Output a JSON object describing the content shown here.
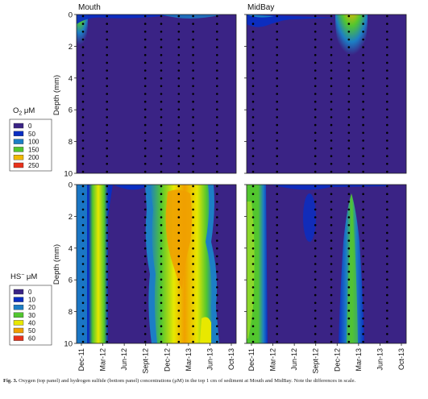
{
  "caption": {
    "label": "Fig. 3.",
    "text": "Oxygen (top panel) and hydrogen sulfide (bottom panel) concentrations (μM) in the top 1 cm of sediment at Mouth and MidBay. Note the differences in scale."
  },
  "colors": {
    "background": "#3a2385",
    "frame": "#222222",
    "dot": "#000000"
  },
  "chart_data": [
    {
      "type": "heatmap",
      "panel": "oxygen-mouth",
      "title": "Mouth",
      "ylabel": "Depth (mm)",
      "ylim": [
        10,
        0
      ],
      "yticks": [
        "0",
        "2",
        "4",
        "6",
        "8",
        "10"
      ],
      "xlim": [
        "2011-11",
        "2013-11"
      ],
      "grid": false,
      "data_points": "sampling dots at ~0.5 mm depth intervals on each sampling date",
      "features": [
        {
          "date": "2011-12",
          "depth_range": [
            0,
            2
          ],
          "max_value": 250,
          "note": "oxic surface layer"
        }
      ]
    },
    {
      "type": "heatmap",
      "panel": "oxygen-midbay",
      "title": "MidBay",
      "ylim": [
        10,
        0
      ],
      "xlim": [
        "2011-11",
        "2013-11"
      ],
      "grid": false,
      "features": [
        {
          "date": "2013-03",
          "depth_range": [
            0,
            2.5
          ],
          "max_value": 250,
          "note": "oxic surface layer"
        }
      ]
    },
    {
      "type": "heatmap",
      "panel": "sulfide-mouth",
      "ylabel": "Depth (mm)",
      "ylim": [
        10,
        0
      ],
      "yticks": [
        "0",
        "2",
        "4",
        "6",
        "8",
        "10"
      ],
      "xlim": [
        "2011-11",
        "2013-11"
      ],
      "xticks": [
        "Dec-11",
        "Mar-12",
        "Jun-12",
        "Sept-12",
        "Dec-12",
        "Mar-13",
        "Jun-13",
        "Oct-13"
      ],
      "grid": false,
      "features": [
        {
          "date": "2012-01",
          "depth_range": [
            0,
            10
          ],
          "max_value": 60
        },
        {
          "date_range": [
            "2012-11",
            "2013-06"
          ],
          "depth_range": [
            0,
            10
          ],
          "max_value": 60
        }
      ]
    },
    {
      "type": "heatmap",
      "panel": "sulfide-midbay",
      "ylim": [
        10,
        0
      ],
      "xlim": [
        "2011-11",
        "2013-11"
      ],
      "xticks": [
        "Dec-11",
        "Mar-12",
        "Jun-12",
        "Sept-12",
        "Dec-12",
        "Mar-13",
        "Jun-13",
        "Oct-13"
      ],
      "grid": false,
      "features": [
        {
          "date": "2011-12",
          "depth_range": [
            0,
            10
          ],
          "max_value": 30
        },
        {
          "date": "2013-03",
          "depth_range": [
            0.5,
            10
          ],
          "max_value": 30
        }
      ]
    }
  ],
  "legends": {
    "oxygen": {
      "title_main": "O",
      "title_sub": "2",
      "title_unit": " μM",
      "items": [
        {
          "label": "0",
          "color": "#3a2385"
        },
        {
          "label": "50",
          "color": "#0a2ec2"
        },
        {
          "label": "100",
          "color": "#1c7ec5"
        },
        {
          "label": "150",
          "color": "#52c62f"
        },
        {
          "label": "200",
          "color": "#f0b800"
        },
        {
          "label": "250",
          "color": "#e8321c"
        }
      ]
    },
    "sulfide": {
      "title_main": "HS",
      "title_sup": "−",
      "title_unit": " μM",
      "items": [
        {
          "label": "0",
          "color": "#3a2385"
        },
        {
          "label": "10",
          "color": "#0a2ec2"
        },
        {
          "label": "20",
          "color": "#1c7ec5"
        },
        {
          "label": "30",
          "color": "#52c62f"
        },
        {
          "label": "40",
          "color": "#e8e800"
        },
        {
          "label": "50",
          "color": "#f0a000"
        },
        {
          "label": "60",
          "color": "#e8321c"
        }
      ]
    }
  }
}
